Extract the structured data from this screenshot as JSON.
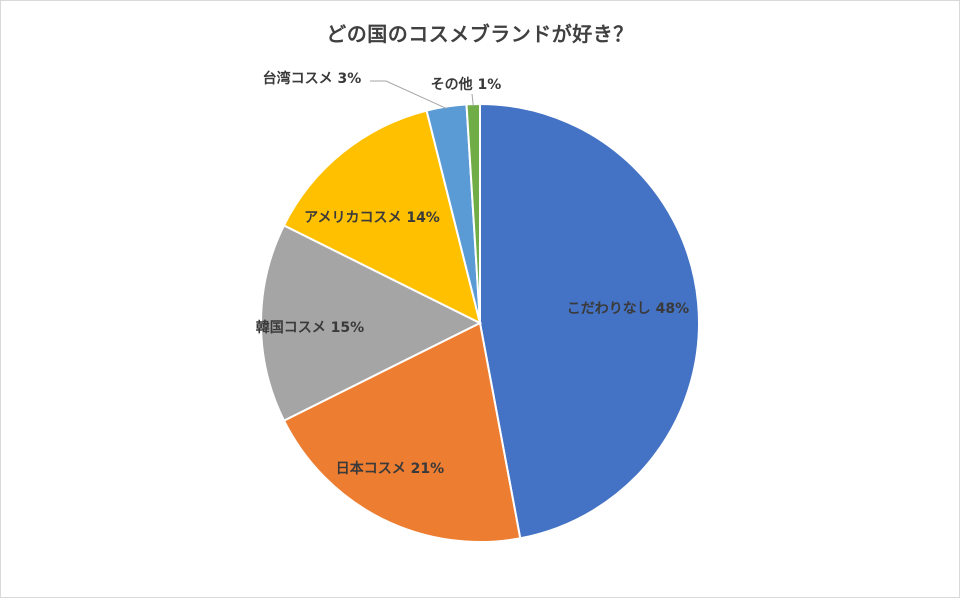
{
  "chart_data": {
    "type": "pie",
    "title": "どの国のコスメブランドが好き？",
    "categories": [
      "こだわりなし",
      "日本コスメ",
      "韓国コスメ",
      "アメリカコスメ",
      "台湾コスメ",
      "その他"
    ],
    "values": [
      48,
      21,
      15,
      14,
      3,
      1
    ],
    "labels": [
      "こだわりなし 48%",
      "日本コスメ 21%",
      "韓国コスメ 15%",
      "アメリカコスメ 14%",
      "台湾コスメ 3%",
      "その他 1%"
    ],
    "colors": [
      "#4472C4",
      "#ED7D31",
      "#A5A5A5",
      "#FFC000",
      "#5B9BD5",
      "#70AD47"
    ],
    "legend": "none",
    "start_angle": "12 o'clock",
    "direction": "clockwise"
  }
}
